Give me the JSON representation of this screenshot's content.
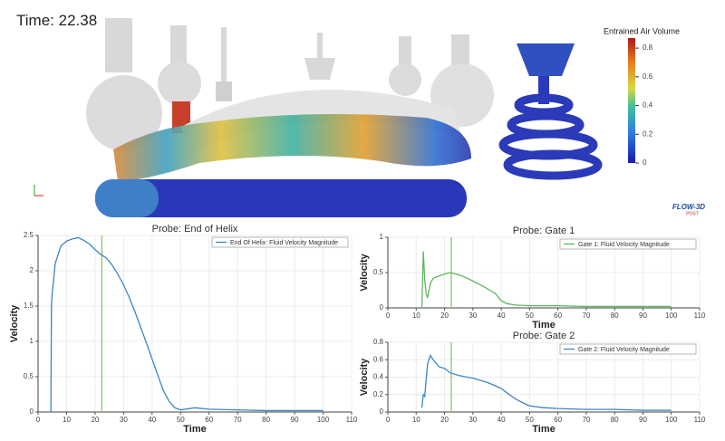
{
  "time_label": "Time:",
  "time": 22.38,
  "time_marker_color": "#8cc56a",
  "colorbar": {
    "title": "Entrained Air Volume",
    "ylim": [
      0,
      0.87
    ],
    "yticks": [
      0,
      0.2,
      0.4,
      0.6,
      0.8
    ]
  },
  "logo": {
    "name": "FLOW-3D",
    "sub": "POST"
  },
  "chart_data": [
    {
      "type": "line",
      "title": "Probe: End of Helix",
      "xlabel": "Time",
      "ylabel": "Velocity",
      "xlim": [
        0,
        110
      ],
      "xticks": [
        0,
        10,
        20,
        30,
        40,
        50,
        60,
        70,
        80,
        90,
        100,
        110
      ],
      "ylim": [
        0,
        2.5
      ],
      "yticks": [
        0,
        0.5,
        1,
        1.5,
        2,
        2.5
      ],
      "grid": true,
      "x": [
        4.5,
        4.7,
        5,
        5.3,
        6,
        8,
        10,
        12,
        14,
        16,
        18,
        20,
        22,
        24,
        26,
        28,
        30,
        32,
        34,
        36,
        38,
        40,
        42,
        44,
        46,
        48,
        50,
        55,
        60,
        70,
        80,
        90,
        100
      ],
      "series": [
        {
          "name": "End Of Helix: Fluid Velocity Magnitude",
          "color": "#3a86c8",
          "values": [
            0,
            1.5,
            1.7,
            1.8,
            2.1,
            2.35,
            2.42,
            2.45,
            2.47,
            2.43,
            2.38,
            2.3,
            2.23,
            2.18,
            2.08,
            1.95,
            1.8,
            1.62,
            1.42,
            1.2,
            0.98,
            0.75,
            0.52,
            0.3,
            0.15,
            0.06,
            0.03,
            0.06,
            0.04,
            0.03,
            0.02,
            0.02,
            0.02
          ]
        }
      ]
    },
    {
      "type": "line",
      "title": "Probe: Gate 1",
      "xlabel": "Time",
      "ylabel": "Velocity",
      "xlim": [
        0,
        110
      ],
      "xticks": [
        0,
        10,
        20,
        30,
        40,
        50,
        60,
        70,
        80,
        90,
        100,
        110
      ],
      "ylim": [
        0,
        1
      ],
      "yticks": [
        0,
        0.5,
        1
      ],
      "grid": true,
      "x": [
        12,
        12.5,
        13,
        13.5,
        14,
        15,
        16,
        18,
        20,
        22,
        25,
        28,
        30,
        33,
        36,
        38,
        40,
        42,
        45,
        50,
        60,
        70,
        80,
        90,
        100
      ],
      "series": [
        {
          "name": "Gate 1: Fluid Velocity Magnitude",
          "color": "#5cb85c",
          "values": [
            0,
            0.8,
            0.4,
            0.2,
            0.15,
            0.35,
            0.42,
            0.45,
            0.48,
            0.5,
            0.47,
            0.42,
            0.38,
            0.32,
            0.25,
            0.2,
            0.1,
            0.06,
            0.04,
            0.03,
            0.03,
            0.02,
            0.02,
            0.02,
            0.02
          ]
        }
      ]
    },
    {
      "type": "line",
      "title": "Probe: Gate 2",
      "xlabel": "Time",
      "ylabel": "Velocity",
      "xlim": [
        0,
        110
      ],
      "xticks": [
        0,
        10,
        20,
        30,
        40,
        50,
        60,
        70,
        80,
        90,
        100,
        110
      ],
      "ylim": [
        0,
        0.8
      ],
      "yticks": [
        0,
        0.2,
        0.4,
        0.6,
        0.8
      ],
      "grid": true,
      "x": [
        12,
        12.5,
        13,
        14,
        15,
        16,
        18,
        20,
        22,
        25,
        28,
        30,
        35,
        38,
        40,
        42,
        45,
        48,
        50,
        55,
        60,
        70,
        80,
        90,
        100
      ],
      "series": [
        {
          "name": "Gate 2: Fluid Velocity Magnitude",
          "color": "#3a86c8",
          "values": [
            0.05,
            0.2,
            0.18,
            0.55,
            0.65,
            0.6,
            0.52,
            0.5,
            0.45,
            0.42,
            0.4,
            0.39,
            0.34,
            0.3,
            0.27,
            0.22,
            0.15,
            0.1,
            0.07,
            0.05,
            0.04,
            0.03,
            0.03,
            0.02,
            0.02
          ]
        }
      ]
    }
  ]
}
